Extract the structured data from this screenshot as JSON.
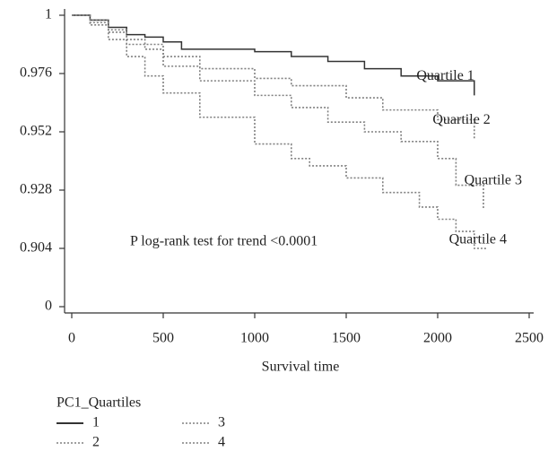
{
  "chart_data": {
    "type": "step",
    "xlabel": "Survival time",
    "annotation": "P log-rank test for trend <0.0001",
    "xlim": [
      0,
      2500
    ],
    "xticks": [
      0,
      500,
      1000,
      1500,
      2000,
      2500
    ],
    "ylim": [
      0,
      1
    ],
    "yticks": [
      0,
      0.904,
      0.928,
      0.952,
      0.976,
      1
    ],
    "y_axis_break": true,
    "legend_title": "PC1_Quartiles",
    "legend_position": "bottom",
    "series": [
      {
        "name": "1",
        "end_label": "Quartile 1",
        "color": "#333333",
        "dash": "solid",
        "x": [
          0,
          100,
          200,
          300,
          400,
          500,
          600,
          800,
          1000,
          1200,
          1400,
          1600,
          1800,
          2000,
          2200,
          2200
        ],
        "values": [
          1,
          0.998,
          0.995,
          0.992,
          0.991,
          0.989,
          0.986,
          0.986,
          0.985,
          0.983,
          0.981,
          0.978,
          0.975,
          0.973,
          0.971,
          0.967
        ]
      },
      {
        "name": "2",
        "end_label": "Quartile 2",
        "color": "#808080",
        "dash": "dotted",
        "x": [
          0,
          100,
          200,
          300,
          400,
          500,
          700,
          1000,
          1200,
          1500,
          1700,
          2000,
          2200,
          2200
        ],
        "values": [
          1,
          0.998,
          0.994,
          0.99,
          0.986,
          0.983,
          0.978,
          0.974,
          0.971,
          0.966,
          0.961,
          0.957,
          0.953,
          0.949
        ]
      },
      {
        "name": "3",
        "end_label": "Quartile 3",
        "color": "#808080",
        "dash": "dotted",
        "x": [
          0,
          100,
          200,
          300,
          500,
          700,
          1000,
          1200,
          1400,
          1600,
          1800,
          2000,
          2100,
          2250,
          2250
        ],
        "values": [
          1,
          0.997,
          0.993,
          0.988,
          0.979,
          0.973,
          0.967,
          0.962,
          0.956,
          0.952,
          0.948,
          0.941,
          0.93,
          0.928,
          0.92
        ]
      },
      {
        "name": "4",
        "end_label": "Quartile 4",
        "color": "#808080",
        "dash": "dotted",
        "x": [
          0,
          100,
          200,
          300,
          400,
          500,
          700,
          1000,
          1200,
          1300,
          1500,
          1700,
          1900,
          2000,
          2100,
          2200,
          2260,
          2260
        ],
        "values": [
          1,
          0.996,
          0.99,
          0.983,
          0.975,
          0.968,
          0.958,
          0.947,
          0.941,
          0.938,
          0.933,
          0.927,
          0.921,
          0.916,
          0.911,
          0.904,
          0.895,
          0.89
        ]
      }
    ]
  }
}
